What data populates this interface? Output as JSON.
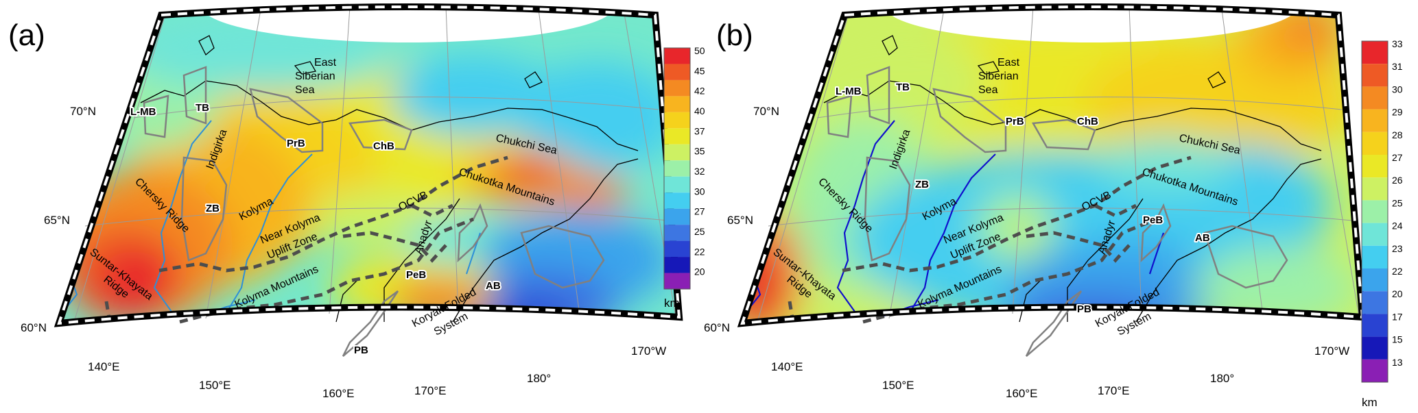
{
  "panels": [
    {
      "letter": "(a)",
      "colorbar": {
        "unit": "km",
        "ticks": [
          "50",
          "45",
          "42",
          "40",
          "37",
          "35",
          "32",
          "30",
          "27",
          "25",
          "22",
          "20"
        ],
        "colors": [
          "#e8262b",
          "#ee5a25",
          "#f48a22",
          "#f8b41f",
          "#f5d21c",
          "#eae826",
          "#cdf163",
          "#9cf0a8",
          "#6fe5d8",
          "#44cef0",
          "#3ba4ec",
          "#3d76e2",
          "#2943d2",
          "#1618b8",
          "#8a1fb4"
        ]
      },
      "grid_labels": {
        "lat_70": "70°N",
        "lat_65": "65°N",
        "lat_60": "60°N",
        "lon_140": "140°E",
        "lon_150": "150°E",
        "lon_160": "160°E",
        "lon_170e": "170°E",
        "lon_180": "180°",
        "lon_170w": "170°W"
      },
      "places": {
        "east_siberian_1": "East",
        "east_siberian_2": "Siberian",
        "east_siberian_3": "Sea",
        "chukchi_sea": "Chukchi Sea",
        "indigirka": "Indigirka",
        "kolyma": "Kolyma",
        "anadyr": "Anadyr",
        "chersky": "Chersky Ridge",
        "suntar_1": "Suntar-Khayata",
        "suntar_2": "Ridge",
        "near_kolyma_1": "Near Kolyma",
        "near_kolyma_2": "Uplift Zone",
        "kolyma_mtns": "Kolyma Mountains",
        "chukotka_mtns": "Chukotka Mountains",
        "koryak_1": "Koryak Folded",
        "koryak_2": "System",
        "ocvb": "OCVB"
      },
      "basins": {
        "lmb": "L-MB",
        "tb": "TB",
        "prb": "PrB",
        "chb": "ChB",
        "zb": "ZB",
        "peb": "PeB",
        "pb": "PB",
        "ab": "AB"
      }
    },
    {
      "letter": "(b)",
      "colorbar": {
        "unit": "km",
        "ticks": [
          "33",
          "31",
          "30",
          "29",
          "28",
          "27",
          "26",
          "25",
          "24",
          "23",
          "22",
          "20",
          "17",
          "15",
          "13"
        ],
        "colors": [
          "#e8262b",
          "#ee5a25",
          "#f48a22",
          "#f8b41f",
          "#f5d21c",
          "#eae826",
          "#cdf163",
          "#9cf0a8",
          "#6fe5d8",
          "#44cef0",
          "#3ba4ec",
          "#3d76e2",
          "#2943d2",
          "#1618b8",
          "#8a1fb4"
        ]
      },
      "grid_labels": {
        "lat_70": "70°N",
        "lat_65": "65°N",
        "lat_60": "60°N",
        "lon_140": "140°E",
        "lon_150": "150°E",
        "lon_160": "160°E",
        "lon_170e": "170°E",
        "lon_180": "180°",
        "lon_170w": "170°W"
      },
      "places": {
        "east_siberian_1": "East",
        "east_siberian_2": "Siberian",
        "east_siberian_3": "Sea",
        "chukchi_sea": "Chukchi Sea",
        "indigirka": "Indigirka",
        "kolyma": "Kolyma",
        "anadyr": "Anadyr",
        "chersky": "Chersky Ridge",
        "suntar_1": "Suntar-Khayata",
        "suntar_2": "Ridge",
        "near_kolyma_1": "Near Kolyma",
        "near_kolyma_2": "Uplift Zone",
        "kolyma_mtns": "Kolyma Mountains",
        "chukotka_mtns": "Chukotka Mountains",
        "koryak_1": "Koryak Folded",
        "koryak_2": "System",
        "ocvb": "OCVB"
      },
      "basins": {
        "lmb": "L-MB",
        "tb": "TB",
        "prb": "PrB",
        "chb": "ChB",
        "zb": "ZB",
        "peb": "PeB",
        "pb": "PB",
        "ab": "AB"
      }
    }
  ]
}
